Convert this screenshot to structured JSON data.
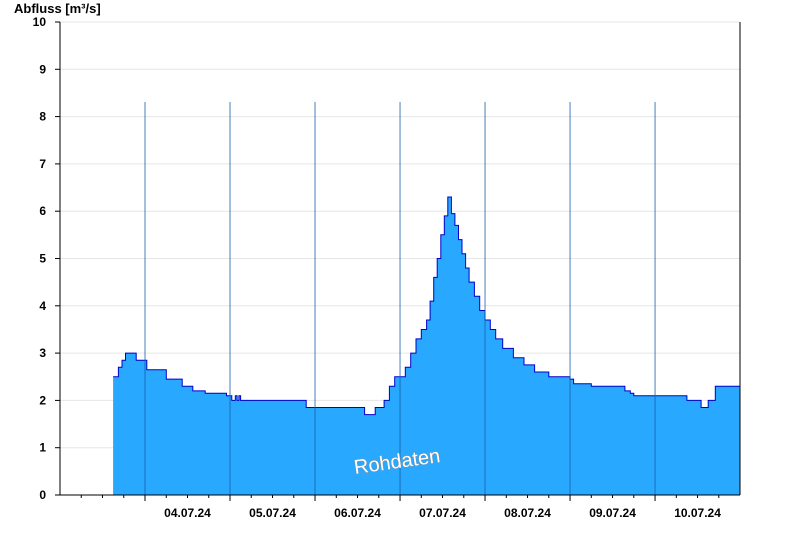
{
  "chart_data": {
    "type": "area",
    "ylabel": "Abfluss [m³/s]",
    "ylim": [
      0,
      10
    ],
    "yticks": [
      0,
      1,
      2,
      3,
      4,
      5,
      6,
      7,
      8,
      9,
      10
    ],
    "xlim": [
      "03.07.24 00:00",
      "10.07.24 23:59"
    ],
    "x_tick_labels": [
      "04.07.24",
      "05.07.24",
      "06.07.24",
      "07.07.24",
      "08.07.24",
      "09.07.24",
      "10.07.24"
    ],
    "watermark": "Rohdaten",
    "grid": true,
    "colors": {
      "fill": "#29a8ff",
      "line": "#0000cc",
      "grid": "#e6e6e6",
      "axis": "#000000"
    },
    "series": [
      {
        "x": [
          "03.07.24 15:00",
          "03.07.24 16:30",
          "03.07.24 17:30",
          "03.07.24 18:30",
          "03.07.24 20:00",
          "03.07.24 21:30",
          "03.07.24 23:00",
          "04.07.24 00:30",
          "04.07.24 03:00",
          "04.07.24 06:00",
          "04.07.24 09:00",
          "04.07.24 10:30",
          "04.07.24 11:30",
          "04.07.24 13:30",
          "04.07.24 17:00",
          "04.07.24 21:30",
          "04.07.24 23:00",
          "05.07.24 00:30",
          "05.07.24 01:30",
          "05.07.24 02:00",
          "05.07.24 02:30",
          "05.07.24 03:00",
          "05.07.24 12:00",
          "05.07.24 21:30",
          "06.07.24 12:00",
          "06.07.24 14:00",
          "06.07.24 15:30",
          "06.07.24 17:00",
          "06.07.24 19:30",
          "06.07.24 21:00",
          "06.07.24 22:30",
          "07.07.24 00:00",
          "07.07.24 01:30",
          "07.07.24 03:00",
          "07.07.24 04:30",
          "07.07.24 06:00",
          "07.07.24 07:30",
          "07.07.24 08:30",
          "07.07.24 09:30",
          "07.07.24 10:30",
          "07.07.24 11:30",
          "07.07.24 12:30",
          "07.07.24 13:30",
          "07.07.24 14:30",
          "07.07.24 15:30",
          "07.07.24 16:30",
          "07.07.24 17:30",
          "07.07.24 18:30",
          "07.07.24 19:30",
          "07.07.24 21:00",
          "07.07.24 22:30",
          "08.07.24 00:00",
          "08.07.24 01:30",
          "08.07.24 03:00",
          "08.07.24 05:00",
          "08.07.24 08:00",
          "08.07.24 11:00",
          "08.07.24 14:00",
          "08.07.24 18:00",
          "09.07.24 00:00",
          "09.07.24 01:00",
          "09.07.24 06:00",
          "09.07.24 09:00",
          "09.07.24 15:30",
          "09.07.24 17:00",
          "09.07.24 18:00",
          "10.07.24 09:00",
          "10.07.24 10:00",
          "10.07.24 11:00",
          "10.07.24 13:00",
          "10.07.24 15:00",
          "10.07.24 17:00",
          "10.07.24 23:59"
        ],
        "values": [
          2.5,
          2.7,
          2.85,
          3.0,
          3.0,
          2.85,
          2.85,
          2.65,
          2.65,
          2.45,
          2.45,
          2.3,
          2.3,
          2.2,
          2.15,
          2.15,
          2.1,
          2.0,
          2.1,
          2.0,
          2.1,
          2.0,
          2.0,
          1.85,
          1.85,
          1.7,
          1.7,
          1.85,
          2.0,
          2.3,
          2.5,
          2.5,
          2.7,
          3.0,
          3.3,
          3.5,
          3.7,
          4.1,
          4.6,
          5.0,
          5.5,
          5.9,
          6.3,
          5.95,
          5.7,
          5.4,
          5.1,
          4.8,
          4.5,
          4.2,
          3.9,
          3.7,
          3.5,
          3.3,
          3.1,
          2.9,
          2.75,
          2.6,
          2.5,
          2.45,
          2.35,
          2.3,
          2.3,
          2.2,
          2.15,
          2.1,
          2.0,
          2.0,
          2.0,
          1.85,
          2.0,
          2.3,
          2.3
        ]
      }
    ]
  }
}
